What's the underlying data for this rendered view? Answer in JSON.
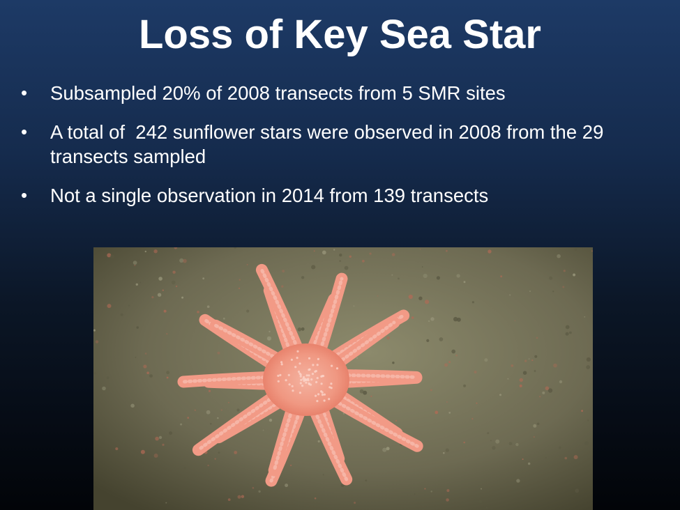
{
  "slide": {
    "title": "Loss of Key Sea Star",
    "bullets": [
      {
        "marker": "•",
        "text": "Subsampled 20% of 2008 transects from 5 SMR sites"
      },
      {
        "marker": "•",
        "text": "A total of  242 sunflower stars were observed in 2008 from the 29 transects sampled"
      },
      {
        "marker": "•",
        "text": "Not a single observation in 2014 from 139 transects"
      }
    ]
  },
  "photo": {
    "subject": "sunflower-sea-star",
    "star_color": "#f29a86",
    "seafloor_color": "#7a775c"
  }
}
